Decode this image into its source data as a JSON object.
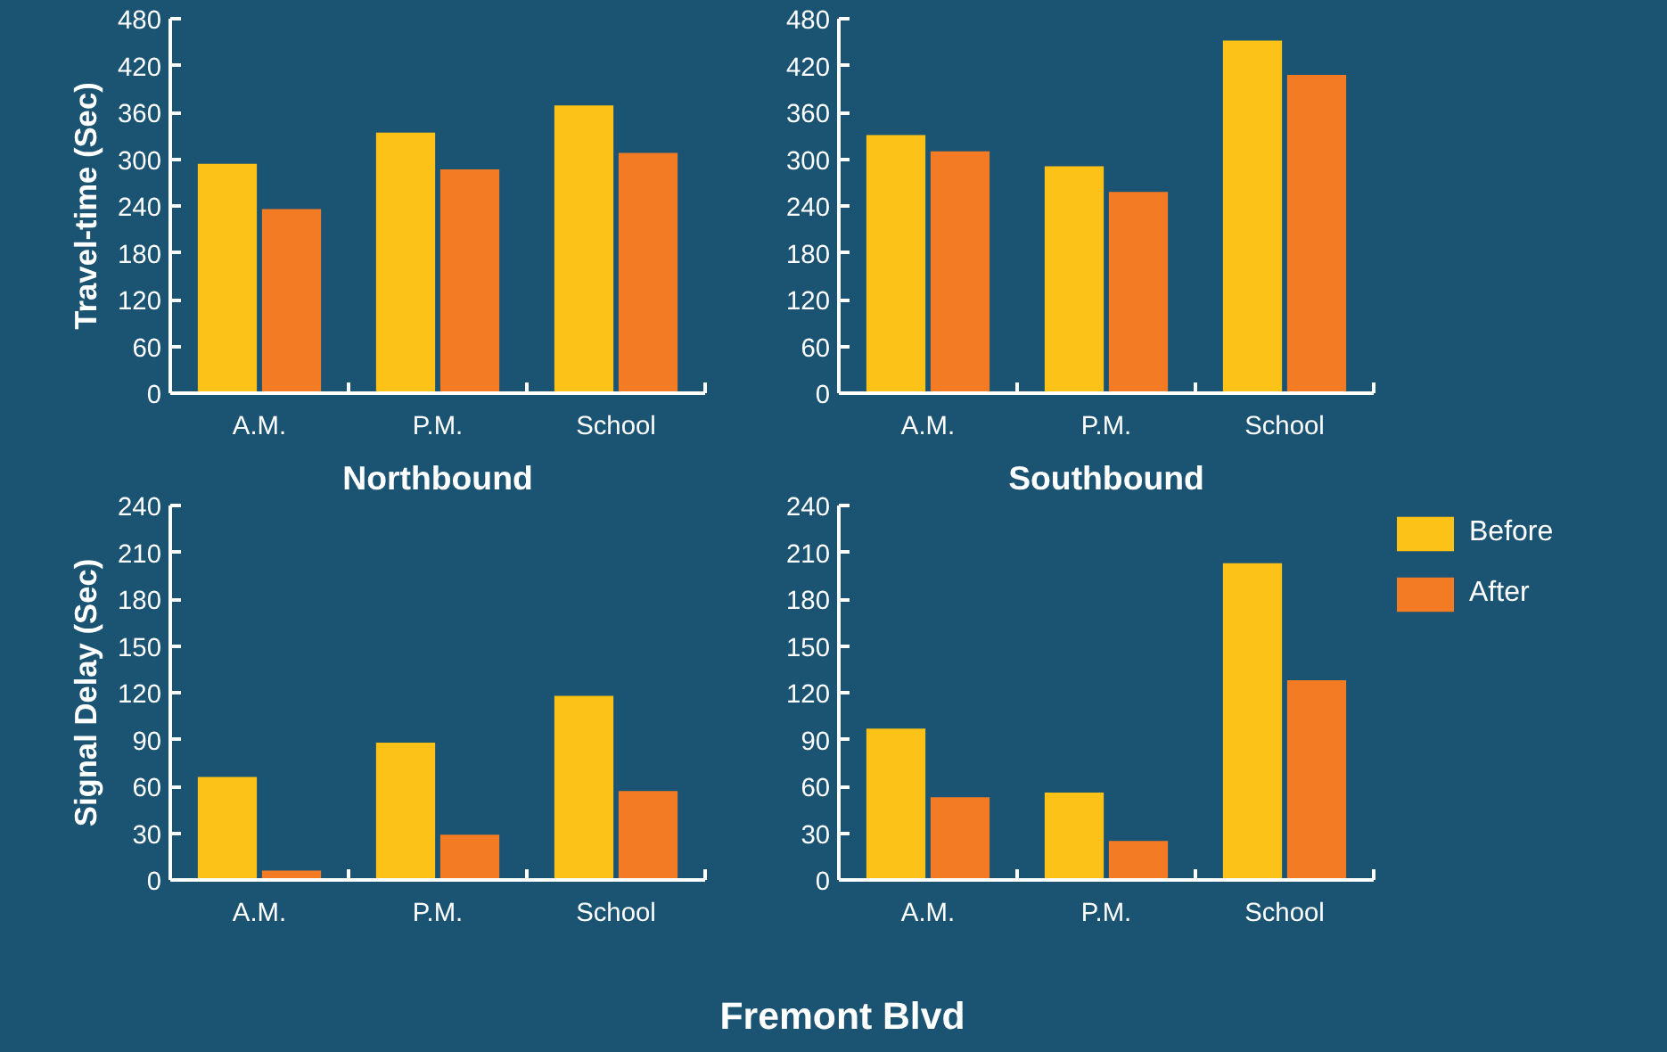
{
  "chart_data": [
    {
      "type": "bar",
      "ylabel": "Travel-time (Sec)",
      "categories": [
        "A.M.",
        "P.M.",
        "School"
      ],
      "series": [
        {
          "color": "#fdc218",
          "values": [
            294,
            334,
            369
          ]
        },
        {
          "color": "#f27b24",
          "values": [
            236,
            287,
            308
          ]
        }
      ],
      "ylim": [
        0,
        480
      ],
      "yticks": [
        0,
        60,
        120,
        180,
        240,
        300,
        360,
        420,
        480
      ],
      "grid": false
    },
    {
      "type": "bar",
      "categories": [
        "A.M.",
        "P.M.",
        "School"
      ],
      "series": [
        {
          "color": "#fdc218",
          "values": [
            331,
            291,
            452
          ]
        },
        {
          "color": "#f27b24",
          "values": [
            310,
            258,
            408
          ]
        }
      ],
      "ylim": [
        0,
        480
      ],
      "yticks": [
        0,
        60,
        120,
        180,
        240,
        300,
        360,
        420,
        480
      ],
      "grid": false
    },
    {
      "type": "bar",
      "title": "Northbound",
      "ylabel": "Signal Delay (Sec)",
      "categories": [
        "A.M.",
        "P.M.",
        "School"
      ],
      "series": [
        {
          "color": "#fdc218",
          "values": [
            66,
            88,
            118
          ]
        },
        {
          "color": "#f27b24",
          "values": [
            6,
            29,
            57
          ]
        }
      ],
      "ylim": [
        0,
        240
      ],
      "yticks": [
        0,
        30,
        60,
        90,
        120,
        150,
        180,
        210,
        240
      ],
      "grid": false,
      "annotations": [
        "Fremont Blvd"
      ]
    },
    {
      "type": "bar",
      "title": "Southbound",
      "categories": [
        "A.M.",
        "P.M.",
        "School"
      ],
      "series": [
        {
          "name": "Before",
          "color": "#fdc218",
          "values": [
            97,
            56,
            203
          ]
        },
        {
          "name": "After",
          "color": "#f27b24",
          "values": [
            53,
            25,
            128
          ]
        }
      ],
      "ylim": [
        0,
        240
      ],
      "yticks": [
        0,
        30,
        60,
        90,
        120,
        150,
        180,
        210,
        240
      ],
      "grid": false,
      "legend": "right"
    }
  ]
}
